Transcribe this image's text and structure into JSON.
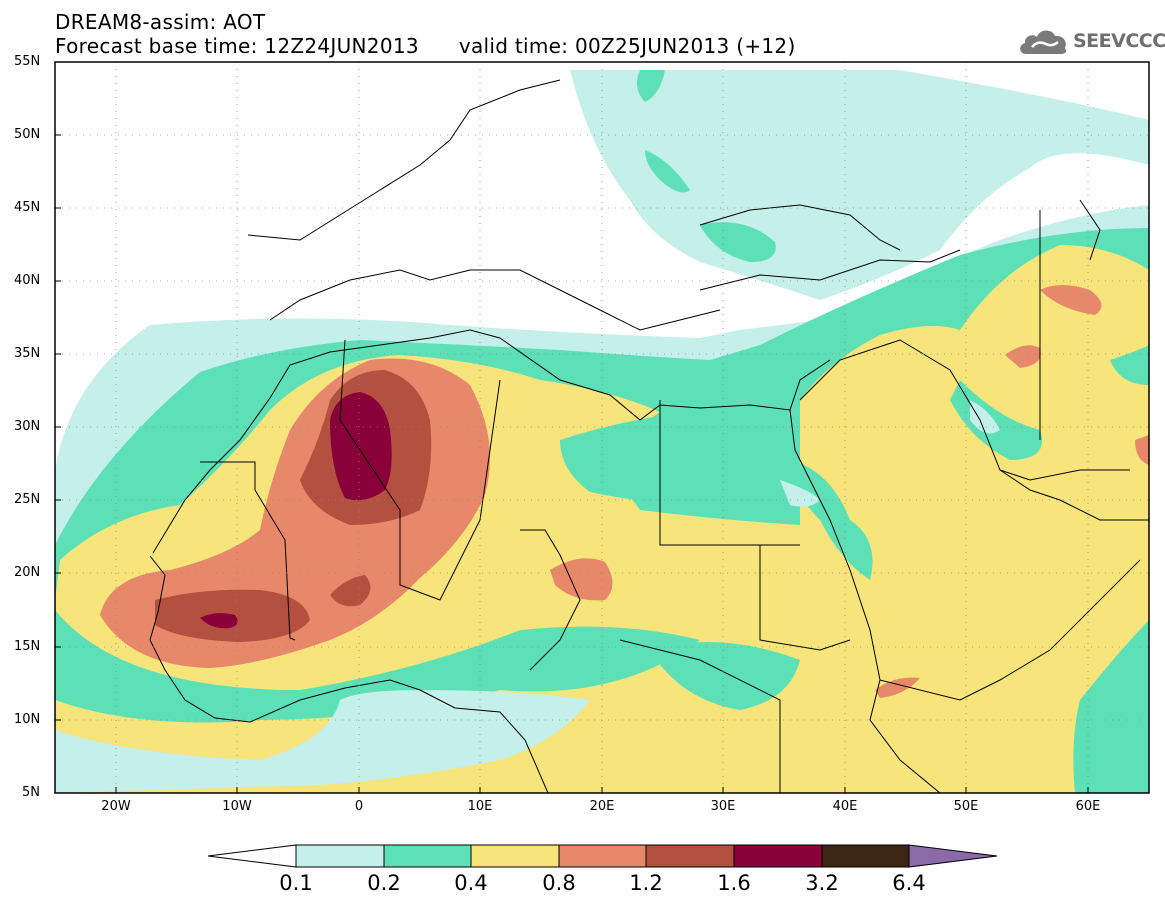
{
  "header": {
    "title_line1": "DREAM8-assim: AOT",
    "title_line2": "Forecast base time: 12Z24JUN2013      valid time: 00Z25JUN2013 (+12)"
  },
  "logo": {
    "text": "SEEVCCC",
    "icon": "cloud-icon"
  },
  "map": {
    "lat_labels": [
      "55N",
      "50N",
      "45N",
      "40N",
      "35N",
      "30N",
      "25N",
      "20N",
      "15N",
      "10N",
      "5N"
    ],
    "lon_labels": [
      "20W",
      "10W",
      "0",
      "10E",
      "20E",
      "30E",
      "40E",
      "50E",
      "60E"
    ],
    "lon_range": [
      -25,
      65
    ],
    "lat_range": [
      5,
      55
    ],
    "grid": true,
    "variable": "AOT"
  },
  "colorbar": {
    "labels": [
      "0.1",
      "0.2",
      "0.4",
      "0.8",
      "1.2",
      "1.6",
      "3.2",
      "6.4"
    ],
    "colors": [
      "#ffffff",
      "#c4efea",
      "#5ee0b7",
      "#f7e47b",
      "#e8886a",
      "#b4503f",
      "#8a0038",
      "#3d2513",
      "#8b6aa8"
    ]
  },
  "colors": {
    "aot_0_1": "#c4efea",
    "aot_0_2": "#5ee0b7",
    "aot_0_4": "#f7e47b",
    "aot_0_8": "#e8886a",
    "aot_1_2": "#b4503f",
    "aot_1_6": "#8a0038",
    "aot_3_2": "#3d2513",
    "aot_6_4": "#8b6aa8"
  }
}
